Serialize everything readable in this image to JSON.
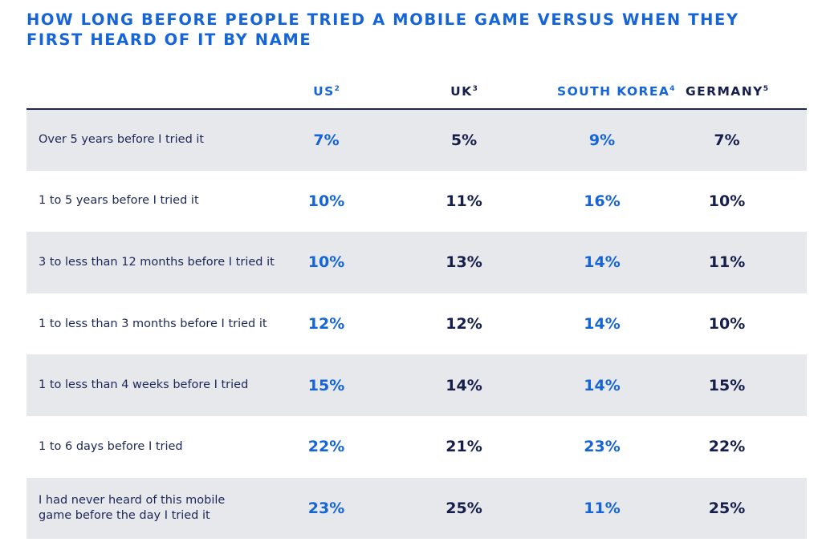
{
  "chart_data": {
    "type": "table",
    "title_lines": [
      "HOW LONG BEFORE PEOPLE TRIED A MOBILE GAME VERSUS WHEN THEY",
      "FIRST HEARD OF IT BY NAME"
    ],
    "columns": [
      {
        "name": "US",
        "sup": "2",
        "color": "#1565d8"
      },
      {
        "name": "UK",
        "sup": "3",
        "color": "#161e4c"
      },
      {
        "name": "SOUTH KOREA",
        "sup": "4",
        "color": "#1565d8"
      },
      {
        "name": "GERMANY",
        "sup": "5",
        "color": "#161e4c"
      }
    ],
    "rows": [
      {
        "label": "Over 5 years before I tried it",
        "values": [
          "7%",
          "5%",
          "9%",
          "7%"
        ]
      },
      {
        "label": "1 to 5 years before I tried it",
        "values": [
          "10%",
          "11%",
          "16%",
          "10%"
        ]
      },
      {
        "label": "3 to less than 12 months before I tried it",
        "values": [
          "10%",
          "13%",
          "14%",
          "11%"
        ]
      },
      {
        "label": "1 to less than 3 months before I tried it",
        "values": [
          "12%",
          "12%",
          "14%",
          "10%"
        ]
      },
      {
        "label": "1 to less than 4 weeks before I tried",
        "values": [
          "15%",
          "14%",
          "14%",
          "15%"
        ]
      },
      {
        "label": "1 to 6 days before I tried",
        "values": [
          "22%",
          "21%",
          "23%",
          "22%"
        ]
      },
      {
        "label": "I had never heard of this mobile game before the day I tried it",
        "values": [
          "23%",
          "25%",
          "11%",
          "25%"
        ]
      }
    ],
    "label_lines_row7": [
      "I had never heard of this mobile",
      "game before the day I tried it"
    ]
  }
}
